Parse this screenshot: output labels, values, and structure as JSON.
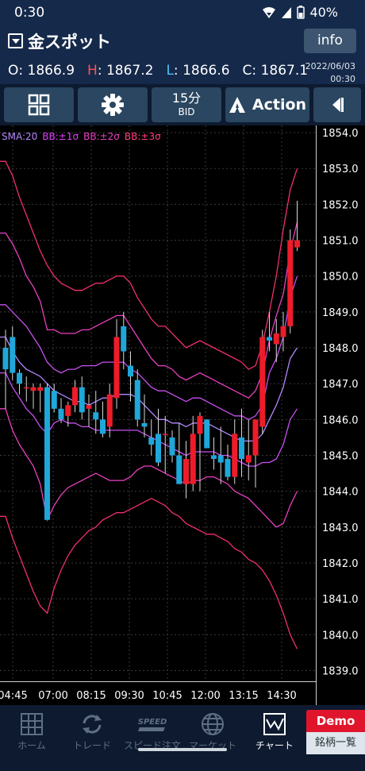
{
  "status": {
    "time": "0:30",
    "battery": "40%"
  },
  "header": {
    "symbol": "金スポット",
    "info_label": "info",
    "ohlc": [
      {
        "key": "O",
        "value": "1866.9"
      },
      {
        "key": "H",
        "value": "1867.2"
      },
      {
        "key": "L",
        "value": "1866.6"
      },
      {
        "key": "C",
        "value": "1867.1"
      }
    ],
    "date": "2022/06/03",
    "time": "00:30"
  },
  "toolbar": {
    "timeframe": "15分",
    "price_type": "BID",
    "action_label": "Action"
  },
  "legend": {
    "sma": "SMA:20",
    "bb1": "BB:±1σ",
    "bb2": "BB:±2σ",
    "bb3": "BB:±3σ"
  },
  "colors": {
    "up": "#ee1c2a",
    "down": "#1fa7d9",
    "sma": "#b388ff",
    "bb1": "#c850f0",
    "bb2": "#ea40c0",
    "bb3": "#f0306a"
  },
  "chart_data": {
    "type": "candlestick",
    "ylim": [
      1838.7,
      1854.2
    ],
    "y_ticks": [
      "1854.0",
      "1853.0",
      "1852.0",
      "1851.0",
      "1850.0",
      "1849.0",
      "1848.0",
      "1847.0",
      "1846.0",
      "1845.0",
      "1844.0",
      "1843.0",
      "1842.0",
      "1841.0",
      "1840.0",
      "1839.0"
    ],
    "x_ticks": [
      "04:45",
      "07:00",
      "08:15",
      "09:30",
      "10:45",
      "12:00",
      "13:15",
      "14:30"
    ],
    "candles": [
      {
        "o": 1848.0,
        "h": 1848.5,
        "l": 1846.3,
        "c": 1847.4
      },
      {
        "o": 1848.3,
        "h": 1848.6,
        "l": 1847.1,
        "c": 1847.3
      },
      {
        "o": 1847.3,
        "h": 1847.4,
        "l": 1846.7,
        "c": 1847.0
      },
      {
        "o": 1846.9,
        "h": 1847.2,
        "l": 1846.5,
        "c": 1846.9
      },
      {
        "o": 1846.8,
        "h": 1847.0,
        "l": 1846.3,
        "c": 1846.9
      },
      {
        "o": 1846.8,
        "h": 1847.0,
        "l": 1846.2,
        "c": 1846.9
      },
      {
        "o": 1846.9,
        "h": 1847.0,
        "l": 1843.2,
        "c": 1843.2
      },
      {
        "o": 1846.8,
        "h": 1847.0,
        "l": 1846.2,
        "c": 1846.3
      },
      {
        "o": 1846.3,
        "h": 1846.6,
        "l": 1845.9,
        "c": 1846.0
      },
      {
        "o": 1846.1,
        "h": 1846.5,
        "l": 1845.8,
        "c": 1846.4
      },
      {
        "o": 1846.4,
        "h": 1847.1,
        "l": 1846.2,
        "c": 1846.9
      },
      {
        "o": 1846.9,
        "h": 1847.2,
        "l": 1846.0,
        "c": 1846.2
      },
      {
        "o": 1846.3,
        "h": 1846.7,
        "l": 1845.8,
        "c": 1846.4
      },
      {
        "o": 1846.2,
        "h": 1846.8,
        "l": 1845.6,
        "c": 1846.0
      },
      {
        "o": 1846.0,
        "h": 1846.5,
        "l": 1845.5,
        "c": 1845.6
      },
      {
        "o": 1845.8,
        "h": 1847.0,
        "l": 1845.5,
        "c": 1846.7
      },
      {
        "o": 1846.6,
        "h": 1848.8,
        "l": 1846.3,
        "c": 1848.3
      },
      {
        "o": 1848.6,
        "h": 1849.0,
        "l": 1847.4,
        "c": 1847.9
      },
      {
        "o": 1847.5,
        "h": 1847.9,
        "l": 1846.5,
        "c": 1847.2
      },
      {
        "o": 1847.1,
        "h": 1847.4,
        "l": 1845.8,
        "c": 1846.0
      },
      {
        "o": 1845.9,
        "h": 1846.7,
        "l": 1845.5,
        "c": 1845.8
      },
      {
        "o": 1845.5,
        "h": 1846.0,
        "l": 1845.0,
        "c": 1845.3
      },
      {
        "o": 1845.6,
        "h": 1846.3,
        "l": 1844.7,
        "c": 1844.8
      },
      {
        "o": 1845.6,
        "h": 1846.1,
        "l": 1844.5,
        "c": 1845.6
      },
      {
        "o": 1845.5,
        "h": 1845.7,
        "l": 1844.8,
        "c": 1845.0
      },
      {
        "o": 1845.0,
        "h": 1845.9,
        "l": 1844.2,
        "c": 1844.2
      },
      {
        "o": 1844.2,
        "h": 1845.4,
        "l": 1843.8,
        "c": 1844.9
      },
      {
        "o": 1844.2,
        "h": 1846.1,
        "l": 1844.0,
        "c": 1845.6
      },
      {
        "o": 1845.6,
        "h": 1846.2,
        "l": 1844.0,
        "c": 1846.1
      },
      {
        "o": 1846.0,
        "h": 1846.0,
        "l": 1845.2,
        "c": 1845.2
      },
      {
        "o": 1845.0,
        "h": 1845.5,
        "l": 1844.6,
        "c": 1844.9
      },
      {
        "o": 1845.0,
        "h": 1845.8,
        "l": 1844.2,
        "c": 1844.8
      },
      {
        "o": 1844.9,
        "h": 1845.3,
        "l": 1844.3,
        "c": 1844.4
      },
      {
        "o": 1844.4,
        "h": 1846.0,
        "l": 1844.2,
        "c": 1845.6
      },
      {
        "o": 1845.5,
        "h": 1846.3,
        "l": 1844.4,
        "c": 1844.9
      },
      {
        "o": 1844.8,
        "h": 1846.0,
        "l": 1844.3,
        "c": 1845.0
      },
      {
        "o": 1845.0,
        "h": 1846.0,
        "l": 1844.1,
        "c": 1846.0
      },
      {
        "o": 1845.8,
        "h": 1848.5,
        "l": 1845.6,
        "c": 1848.3
      },
      {
        "o": 1848.3,
        "h": 1849.0,
        "l": 1847.9,
        "c": 1848.2
      },
      {
        "o": 1848.1,
        "h": 1848.8,
        "l": 1847.6,
        "c": 1848.4
      },
      {
        "o": 1848.3,
        "h": 1849.0,
        "l": 1847.9,
        "c": 1848.6
      },
      {
        "o": 1848.6,
        "h": 1851.3,
        "l": 1848.4,
        "c": 1851.0
      },
      {
        "o": 1850.8,
        "h": 1852.1,
        "l": 1850.7,
        "c": 1851.0
      }
    ],
    "sma": [
      1848.3,
      1847.9,
      1847.6,
      1847.4,
      1847.3,
      1847.2,
      1847.0,
      1846.8,
      1846.7,
      1846.6,
      1846.5,
      1846.5,
      1846.4,
      1846.5,
      1846.6,
      1846.6,
      1846.7,
      1846.7,
      1846.7,
      1846.6,
      1846.4,
      1846.2,
      1846.0,
      1846.0,
      1845.9,
      1845.9,
      1845.8,
      1845.9,
      1845.9,
      1845.9,
      1845.8,
      1845.7,
      1845.6,
      1845.5,
      1845.4,
      1845.4,
      1845.4,
      1845.6,
      1846.0,
      1846.4,
      1846.9,
      1847.7,
      1848.0
    ],
    "bb1_upper": [
      1849.2,
      1849.0,
      1848.8,
      1848.6,
      1848.3,
      1848.0,
      1847.6,
      1847.4,
      1847.3,
      1847.4,
      1847.4,
      1847.5,
      1847.5,
      1847.5,
      1847.6,
      1847.6,
      1847.6,
      1847.6,
      1847.4,
      1847.3,
      1847.1,
      1846.9,
      1846.8,
      1846.8,
      1846.7,
      1846.6,
      1846.5,
      1846.6,
      1846.6,
      1846.5,
      1846.4,
      1846.3,
      1846.2,
      1846.1,
      1846.1,
      1846.0,
      1846.1,
      1846.4,
      1847.3,
      1847.7,
      1848.3,
      1849.4,
      1850.0
    ],
    "bb1_lower": [
      1847.3,
      1846.9,
      1846.6,
      1846.3,
      1846.1,
      1845.8,
      1845.6,
      1845.9,
      1846.0,
      1845.9,
      1845.9,
      1845.8,
      1845.8,
      1845.7,
      1845.7,
      1845.7,
      1845.7,
      1845.7,
      1845.7,
      1845.7,
      1845.6,
      1845.5,
      1845.4,
      1845.3,
      1845.2,
      1845.1,
      1845.0,
      1845.1,
      1845.1,
      1845.1,
      1845.1,
      1845.0,
      1845.0,
      1844.9,
      1844.8,
      1844.7,
      1844.7,
      1844.8,
      1844.8,
      1844.9,
      1845.3,
      1846.0,
      1846.3
    ],
    "bb2_upper": [
      1851.2,
      1850.9,
      1850.5,
      1850.0,
      1849.7,
      1849.3,
      1848.5,
      1848.5,
      1848.4,
      1848.4,
      1848.4,
      1848.5,
      1848.5,
      1848.6,
      1848.7,
      1848.8,
      1848.9,
      1848.9,
      1848.6,
      1848.3,
      1848.0,
      1847.7,
      1847.5,
      1847.5,
      1847.4,
      1847.2,
      1847.1,
      1847.2,
      1847.3,
      1847.2,
      1847.1,
      1847.0,
      1846.9,
      1846.8,
      1846.7,
      1846.6,
      1846.8,
      1847.3,
      1848.2,
      1848.9,
      1849.5,
      1850.7,
      1851.5
    ],
    "bb2_lower": [
      1846.3,
      1845.7,
      1845.3,
      1845.0,
      1844.7,
      1844.2,
      1843.2,
      1843.6,
      1843.9,
      1844.1,
      1844.2,
      1844.3,
      1844.4,
      1844.5,
      1844.4,
      1844.3,
      1844.3,
      1844.3,
      1844.4,
      1844.6,
      1844.7,
      1844.7,
      1844.6,
      1844.5,
      1844.4,
      1844.3,
      1844.2,
      1844.3,
      1844.3,
      1844.4,
      1844.4,
      1844.3,
      1844.2,
      1844.0,
      1843.9,
      1843.8,
      1843.6,
      1843.4,
      1843.2,
      1843.0,
      1843.1,
      1843.6,
      1844.0
    ],
    "bb3_upper": [
      1853.2,
      1852.8,
      1852.2,
      1851.7,
      1851.2,
      1850.7,
      1850.3,
      1850.0,
      1849.8,
      1849.7,
      1849.6,
      1849.6,
      1849.7,
      1849.8,
      1849.8,
      1849.9,
      1850.0,
      1850.0,
      1849.8,
      1849.4,
      1849.1,
      1848.8,
      1848.6,
      1848.6,
      1848.4,
      1848.2,
      1848.0,
      1848.1,
      1848.2,
      1848.1,
      1848.0,
      1847.9,
      1847.8,
      1847.7,
      1847.6,
      1847.4,
      1847.5,
      1848.1,
      1849.0,
      1850.0,
      1851.3,
      1852.4,
      1853.0
    ],
    "bb3_lower": [
      1843.3,
      1842.7,
      1842.2,
      1841.7,
      1841.2,
      1840.8,
      1840.6,
      1841.3,
      1841.8,
      1842.2,
      1842.5,
      1842.7,
      1842.9,
      1843.0,
      1843.2,
      1843.3,
      1843.4,
      1843.4,
      1843.5,
      1843.6,
      1843.7,
      1843.8,
      1843.7,
      1843.6,
      1843.4,
      1843.3,
      1843.1,
      1843.0,
      1842.9,
      1842.8,
      1842.8,
      1842.7,
      1842.6,
      1842.4,
      1842.3,
      1842.1,
      1842.0,
      1841.8,
      1841.5,
      1841.1,
      1840.6,
      1840.0,
      1839.6
    ]
  },
  "tabbar": {
    "tabs": [
      {
        "label": "ホーム",
        "icon": "grid-icon"
      },
      {
        "label": "トレード",
        "icon": "refresh-icon"
      },
      {
        "label": "スピード注文",
        "icon": "speed-icon"
      },
      {
        "label": "マーケット",
        "icon": "globe-icon"
      },
      {
        "label": "チャート",
        "icon": "chart-icon"
      }
    ],
    "demo_label": "Demo",
    "brand_list_label": "銘柄一覧"
  }
}
